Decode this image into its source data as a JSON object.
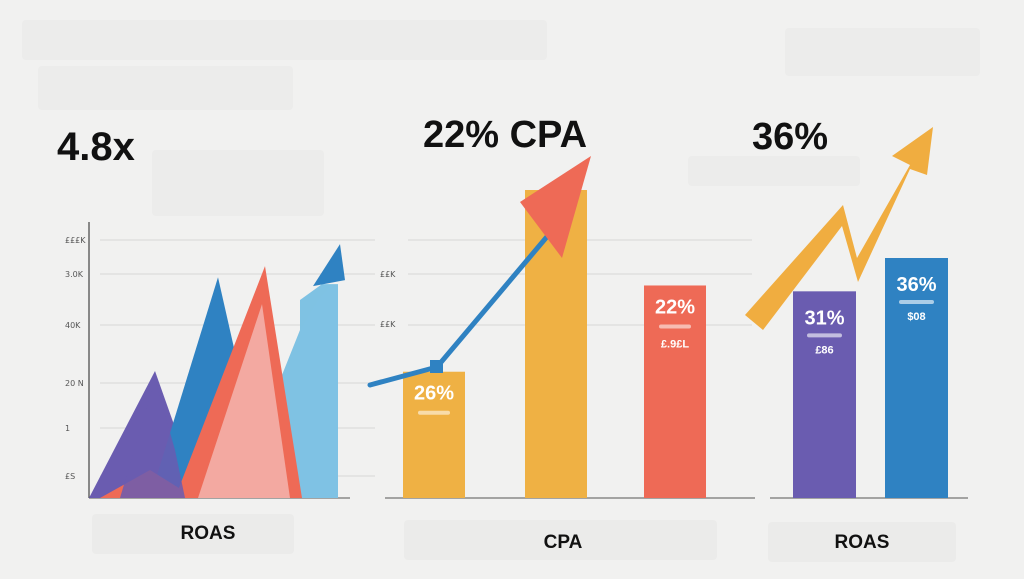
{
  "colors": {
    "background": "#f1f1f0",
    "blue": "#2f82c2",
    "light_blue": "#7fc2e3",
    "purple": "#6a5cb0",
    "coral": "#ee6a56",
    "pink": "#f3a9a1",
    "yellow": "#efb144",
    "arrow_yellow": "#f0ad40"
  },
  "chart_data": [
    {
      "type": "area",
      "headline": "4.8x",
      "xlabel": "ROAS",
      "ytick_labels": [
        "£££K",
        "3.0K",
        "40K",
        "20 N",
        "1",
        "£S"
      ],
      "series": [
        {
          "color": "#6a5cb0",
          "shape": "peak",
          "level": 0.46
        },
        {
          "color": "#2f82c2",
          "shape": "peak",
          "level": 0.8
        },
        {
          "color": "#ee6a56",
          "shape": "peak",
          "level": 0.84
        },
        {
          "color": "#7fc2e3",
          "shape": "rising-arrow",
          "level": 0.92
        }
      ],
      "grid": true
    },
    {
      "type": "bar",
      "headline": "22% CPA",
      "xlabel": "CPA",
      "ytick_labels": [
        "££K",
        "££K"
      ],
      "categories": [
        "",
        "",
        ""
      ],
      "values": [
        0.41,
        1.0,
        0.69
      ],
      "bar_labels": [
        "26%",
        "",
        "22%"
      ],
      "bar_sublabels": [
        "",
        "",
        "£.9£L"
      ],
      "colors": [
        "#efb144",
        "#efb144",
        "#ee6a56"
      ],
      "trend_arrow": "up",
      "grid": true
    },
    {
      "type": "bar",
      "headline": "36%",
      "xlabel": "ROAS",
      "categories": [
        "",
        ""
      ],
      "values": [
        0.31,
        0.36
      ],
      "bar_labels": [
        "31%",
        "36%"
      ],
      "bar_sublabels": [
        "£86",
        "$08"
      ],
      "colors": [
        "#6a5cb0",
        "#2f82c2"
      ],
      "trend_arrow": "up"
    }
  ]
}
